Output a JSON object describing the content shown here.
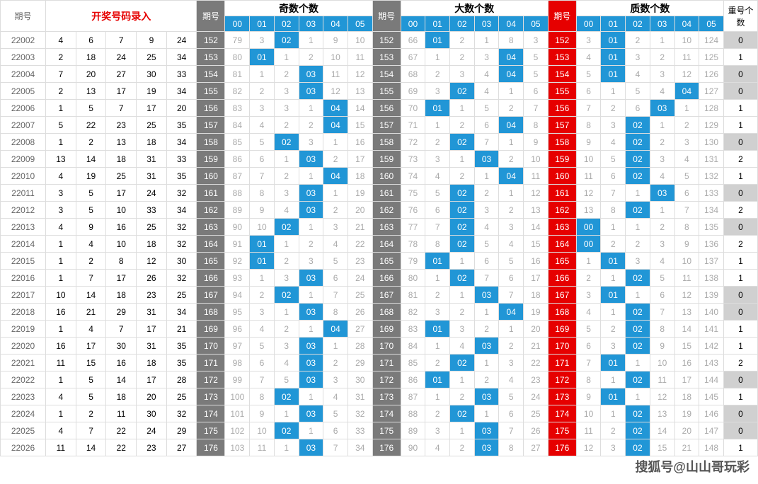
{
  "headers": {
    "period": "期号",
    "entry": "开奖号码录入",
    "p2": "期号",
    "odd": "奇数个数",
    "p3": "期号",
    "big": "大数个数",
    "p4": "期号",
    "prime": "质数个数",
    "chong": "重号个数",
    "sub": [
      "00",
      "01",
      "02",
      "03",
      "04",
      "05"
    ]
  },
  "colors": {
    "highlight": "#2196d6",
    "gray_period": "#7a7a7a",
    "red_period": "#e60000",
    "zero_bg": "#d0d0d0",
    "faded_text": "#aaa",
    "border": "#ddd"
  },
  "watermark": "搜狐号@山山哥玩彩",
  "rows": [
    {
      "period": "22002",
      "entry": [
        4,
        6,
        7,
        9,
        24
      ],
      "p": "152",
      "odd": {
        "v": [
          79,
          3,
          "02",
          1,
          9,
          10
        ],
        "h": 2
      },
      "big": {
        "v": [
          66,
          "01",
          2,
          1,
          8,
          3
        ],
        "h": 1
      },
      "prime": {
        "v": [
          3,
          "01",
          2,
          1,
          10,
          124
        ],
        "h": 1
      },
      "chong": 0
    },
    {
      "period": "22003",
      "entry": [
        2,
        18,
        24,
        25,
        34
      ],
      "p": "153",
      "odd": {
        "v": [
          80,
          "01",
          1,
          2,
          10,
          11
        ],
        "h": 1
      },
      "big": {
        "v": [
          67,
          1,
          2,
          3,
          "04",
          5
        ],
        "h": 4
      },
      "prime": {
        "v": [
          4,
          "01",
          3,
          2,
          11,
          125
        ],
        "h": 1
      },
      "chong": 1
    },
    {
      "period": "22004",
      "entry": [
        7,
        20,
        27,
        30,
        33
      ],
      "p": "154",
      "odd": {
        "v": [
          81,
          1,
          2,
          "03",
          11,
          12
        ],
        "h": 3
      },
      "big": {
        "v": [
          68,
          2,
          3,
          4,
          "04",
          5
        ],
        "h": 4
      },
      "prime": {
        "v": [
          5,
          "01",
          4,
          3,
          12,
          126
        ],
        "h": 1
      },
      "chong": 0
    },
    {
      "period": "22005",
      "entry": [
        2,
        13,
        17,
        19,
        34
      ],
      "p": "155",
      "odd": {
        "v": [
          82,
          2,
          3,
          "03",
          12,
          13
        ],
        "h": 3
      },
      "big": {
        "v": [
          69,
          3,
          "02",
          4,
          1,
          6
        ],
        "h": 2
      },
      "prime": {
        "v": [
          6,
          1,
          5,
          4,
          "04",
          127
        ],
        "h": 4
      },
      "chong": 0
    },
    {
      "period": "22006",
      "entry": [
        1,
        5,
        7,
        17,
        20
      ],
      "p": "156",
      "odd": {
        "v": [
          83,
          3,
          3,
          1,
          "04",
          14
        ],
        "h": 4
      },
      "big": {
        "v": [
          70,
          "01",
          1,
          5,
          2,
          7
        ],
        "h": 1
      },
      "prime": {
        "v": [
          7,
          2,
          6,
          "03",
          1,
          128
        ],
        "h": 3
      },
      "chong": 1
    },
    {
      "period": "22007",
      "entry": [
        5,
        22,
        23,
        25,
        35
      ],
      "p": "157",
      "odd": {
        "v": [
          84,
          4,
          2,
          2,
          "04",
          15
        ],
        "h": 4
      },
      "big": {
        "v": [
          71,
          1,
          2,
          6,
          "04",
          8
        ],
        "h": 4
      },
      "prime": {
        "v": [
          8,
          3,
          "02",
          1,
          2,
          129
        ],
        "h": 2
      },
      "chong": 1
    },
    {
      "period": "22008",
      "entry": [
        1,
        2,
        13,
        18,
        34
      ],
      "p": "158",
      "odd": {
        "v": [
          85,
          5,
          "02",
          3,
          1,
          16
        ],
        "h": 2
      },
      "big": {
        "v": [
          72,
          2,
          "02",
          7,
          1,
          9
        ],
        "h": 2
      },
      "prime": {
        "v": [
          9,
          4,
          "02",
          2,
          3,
          130
        ],
        "h": 2
      },
      "chong": 0
    },
    {
      "period": "22009",
      "entry": [
        13,
        14,
        18,
        31,
        33
      ],
      "p": "159",
      "odd": {
        "v": [
          86,
          6,
          1,
          "03",
          2,
          17
        ],
        "h": 3
      },
      "big": {
        "v": [
          73,
          3,
          1,
          "03",
          2,
          10
        ],
        "h": 3
      },
      "prime": {
        "v": [
          10,
          5,
          "02",
          3,
          4,
          131
        ],
        "h": 2
      },
      "chong": 2
    },
    {
      "period": "22010",
      "entry": [
        4,
        19,
        25,
        31,
        35
      ],
      "p": "160",
      "odd": {
        "v": [
          87,
          7,
          2,
          1,
          "04",
          18
        ],
        "h": 4
      },
      "big": {
        "v": [
          74,
          4,
          2,
          1,
          "04",
          11
        ],
        "h": 4
      },
      "prime": {
        "v": [
          11,
          6,
          "02",
          4,
          5,
          132
        ],
        "h": 2
      },
      "chong": 1
    },
    {
      "period": "22011",
      "entry": [
        3,
        5,
        17,
        24,
        32
      ],
      "p": "161",
      "odd": {
        "v": [
          88,
          8,
          3,
          "03",
          1,
          19
        ],
        "h": 3
      },
      "big": {
        "v": [
          75,
          5,
          "02",
          2,
          1,
          12
        ],
        "h": 2
      },
      "prime": {
        "v": [
          12,
          7,
          1,
          "03",
          6,
          133
        ],
        "h": 3
      },
      "chong": 0
    },
    {
      "period": "22012",
      "entry": [
        3,
        5,
        10,
        33,
        34
      ],
      "p": "162",
      "odd": {
        "v": [
          89,
          9,
          4,
          "03",
          2,
          20
        ],
        "h": 3
      },
      "big": {
        "v": [
          76,
          6,
          "02",
          3,
          2,
          13
        ],
        "h": 2
      },
      "prime": {
        "v": [
          13,
          8,
          "02",
          1,
          7,
          134
        ],
        "h": 2
      },
      "chong": 2
    },
    {
      "period": "22013",
      "entry": [
        4,
        9,
        16,
        25,
        32
      ],
      "p": "163",
      "odd": {
        "v": [
          90,
          10,
          "02",
          1,
          3,
          21
        ],
        "h": 2
      },
      "big": {
        "v": [
          77,
          7,
          "02",
          4,
          3,
          14
        ],
        "h": 2
      },
      "prime": {
        "v": [
          "00",
          1,
          1,
          2,
          8,
          135
        ],
        "h": 0
      },
      "chong": 0
    },
    {
      "period": "22014",
      "entry": [
        1,
        4,
        10,
        18,
        32
      ],
      "p": "164",
      "odd": {
        "v": [
          91,
          "01",
          1,
          2,
          4,
          22
        ],
        "h": 1
      },
      "big": {
        "v": [
          78,
          8,
          "02",
          5,
          4,
          15
        ],
        "h": 2
      },
      "prime": {
        "v": [
          "00",
          2,
          2,
          3,
          9,
          136
        ],
        "h": 0
      },
      "chong": 2
    },
    {
      "period": "22015",
      "entry": [
        1,
        2,
        8,
        12,
        30
      ],
      "p": "165",
      "odd": {
        "v": [
          92,
          "01",
          2,
          3,
          5,
          23
        ],
        "h": 1
      },
      "big": {
        "v": [
          79,
          "01",
          1,
          6,
          5,
          16
        ],
        "h": 1
      },
      "prime": {
        "v": [
          1,
          "01",
          3,
          4,
          10,
          137
        ],
        "h": 1
      },
      "chong": 1
    },
    {
      "period": "22016",
      "entry": [
        1,
        7,
        17,
        26,
        32
      ],
      "p": "166",
      "odd": {
        "v": [
          93,
          1,
          3,
          "03",
          6,
          24
        ],
        "h": 3
      },
      "big": {
        "v": [
          80,
          1,
          "02",
          7,
          6,
          17
        ],
        "h": 2
      },
      "prime": {
        "v": [
          2,
          1,
          "02",
          5,
          11,
          138
        ],
        "h": 2
      },
      "chong": 1
    },
    {
      "period": "22017",
      "entry": [
        10,
        14,
        18,
        23,
        25
      ],
      "p": "167",
      "odd": {
        "v": [
          94,
          2,
          "02",
          1,
          7,
          25
        ],
        "h": 2
      },
      "big": {
        "v": [
          81,
          2,
          1,
          "03",
          7,
          18
        ],
        "h": 3
      },
      "prime": {
        "v": [
          3,
          "01",
          1,
          6,
          12,
          139
        ],
        "h": 1
      },
      "chong": 0
    },
    {
      "period": "22018",
      "entry": [
        16,
        21,
        29,
        31,
        34
      ],
      "p": "168",
      "odd": {
        "v": [
          95,
          3,
          1,
          "03",
          8,
          26
        ],
        "h": 3
      },
      "big": {
        "v": [
          82,
          3,
          2,
          1,
          "04",
          19
        ],
        "h": 4
      },
      "prime": {
        "v": [
          4,
          1,
          "02",
          7,
          13,
          140
        ],
        "h": 2
      },
      "chong": 0
    },
    {
      "period": "22019",
      "entry": [
        1,
        4,
        7,
        17,
        21
      ],
      "p": "169",
      "odd": {
        "v": [
          96,
          4,
          2,
          1,
          "04",
          27
        ],
        "h": 4
      },
      "big": {
        "v": [
          83,
          "01",
          3,
          2,
          1,
          20
        ],
        "h": 1
      },
      "prime": {
        "v": [
          5,
          2,
          "02",
          8,
          14,
          141
        ],
        "h": 2
      },
      "chong": 1
    },
    {
      "period": "22020",
      "entry": [
        16,
        17,
        30,
        31,
        35
      ],
      "p": "170",
      "odd": {
        "v": [
          97,
          5,
          3,
          "03",
          1,
          28
        ],
        "h": 3
      },
      "big": {
        "v": [
          84,
          1,
          4,
          "03",
          2,
          21
        ],
        "h": 3
      },
      "prime": {
        "v": [
          6,
          3,
          "02",
          9,
          15,
          142
        ],
        "h": 2
      },
      "chong": 1
    },
    {
      "period": "22021",
      "entry": [
        11,
        15,
        16,
        18,
        35
      ],
      "p": "171",
      "odd": {
        "v": [
          98,
          6,
          4,
          "03",
          2,
          29
        ],
        "h": 3
      },
      "big": {
        "v": [
          85,
          2,
          "02",
          1,
          3,
          22
        ],
        "h": 2
      },
      "prime": {
        "v": [
          7,
          "01",
          1,
          10,
          16,
          143
        ],
        "h": 1
      },
      "chong": 2
    },
    {
      "period": "22022",
      "entry": [
        1,
        5,
        14,
        17,
        28
      ],
      "p": "172",
      "odd": {
        "v": [
          99,
          7,
          5,
          "03",
          3,
          30
        ],
        "h": 3
      },
      "big": {
        "v": [
          86,
          "01",
          1,
          2,
          4,
          23
        ],
        "h": 1
      },
      "prime": {
        "v": [
          8,
          1,
          "02",
          11,
          17,
          144
        ],
        "h": 2
      },
      "chong": 0
    },
    {
      "period": "22023",
      "entry": [
        4,
        5,
        18,
        20,
        25
      ],
      "p": "173",
      "odd": {
        "v": [
          100,
          8,
          "02",
          1,
          4,
          31
        ],
        "h": 2
      },
      "big": {
        "v": [
          87,
          1,
          2,
          "03",
          5,
          24
        ],
        "h": 3
      },
      "prime": {
        "v": [
          9,
          "01",
          1,
          12,
          18,
          145
        ],
        "h": 1
      },
      "chong": 1
    },
    {
      "period": "22024",
      "entry": [
        1,
        2,
        11,
        30,
        32
      ],
      "p": "174",
      "odd": {
        "v": [
          101,
          9,
          1,
          "03",
          5,
          32
        ],
        "h": 3
      },
      "big": {
        "v": [
          88,
          2,
          "02",
          1,
          6,
          25
        ],
        "h": 2
      },
      "prime": {
        "v": [
          10,
          1,
          "02",
          13,
          19,
          146
        ],
        "h": 2
      },
      "chong": 0
    },
    {
      "period": "22025",
      "entry": [
        4,
        7,
        22,
        24,
        29
      ],
      "p": "175",
      "odd": {
        "v": [
          102,
          10,
          "02",
          1,
          6,
          33
        ],
        "h": 2
      },
      "big": {
        "v": [
          89,
          3,
          1,
          "03",
          7,
          26
        ],
        "h": 3
      },
      "prime": {
        "v": [
          11,
          2,
          "02",
          14,
          20,
          147
        ],
        "h": 2
      },
      "chong": 0
    },
    {
      "period": "22026",
      "entry": [
        11,
        14,
        22,
        23,
        27
      ],
      "p": "176",
      "odd": {
        "v": [
          103,
          11,
          1,
          "03",
          7,
          34
        ],
        "h": 3
      },
      "big": {
        "v": [
          90,
          4,
          2,
          "03",
          8,
          27
        ],
        "h": 3
      },
      "prime": {
        "v": [
          12,
          3,
          "02",
          15,
          21,
          148
        ],
        "h": 2
      },
      "chong": 1
    }
  ]
}
